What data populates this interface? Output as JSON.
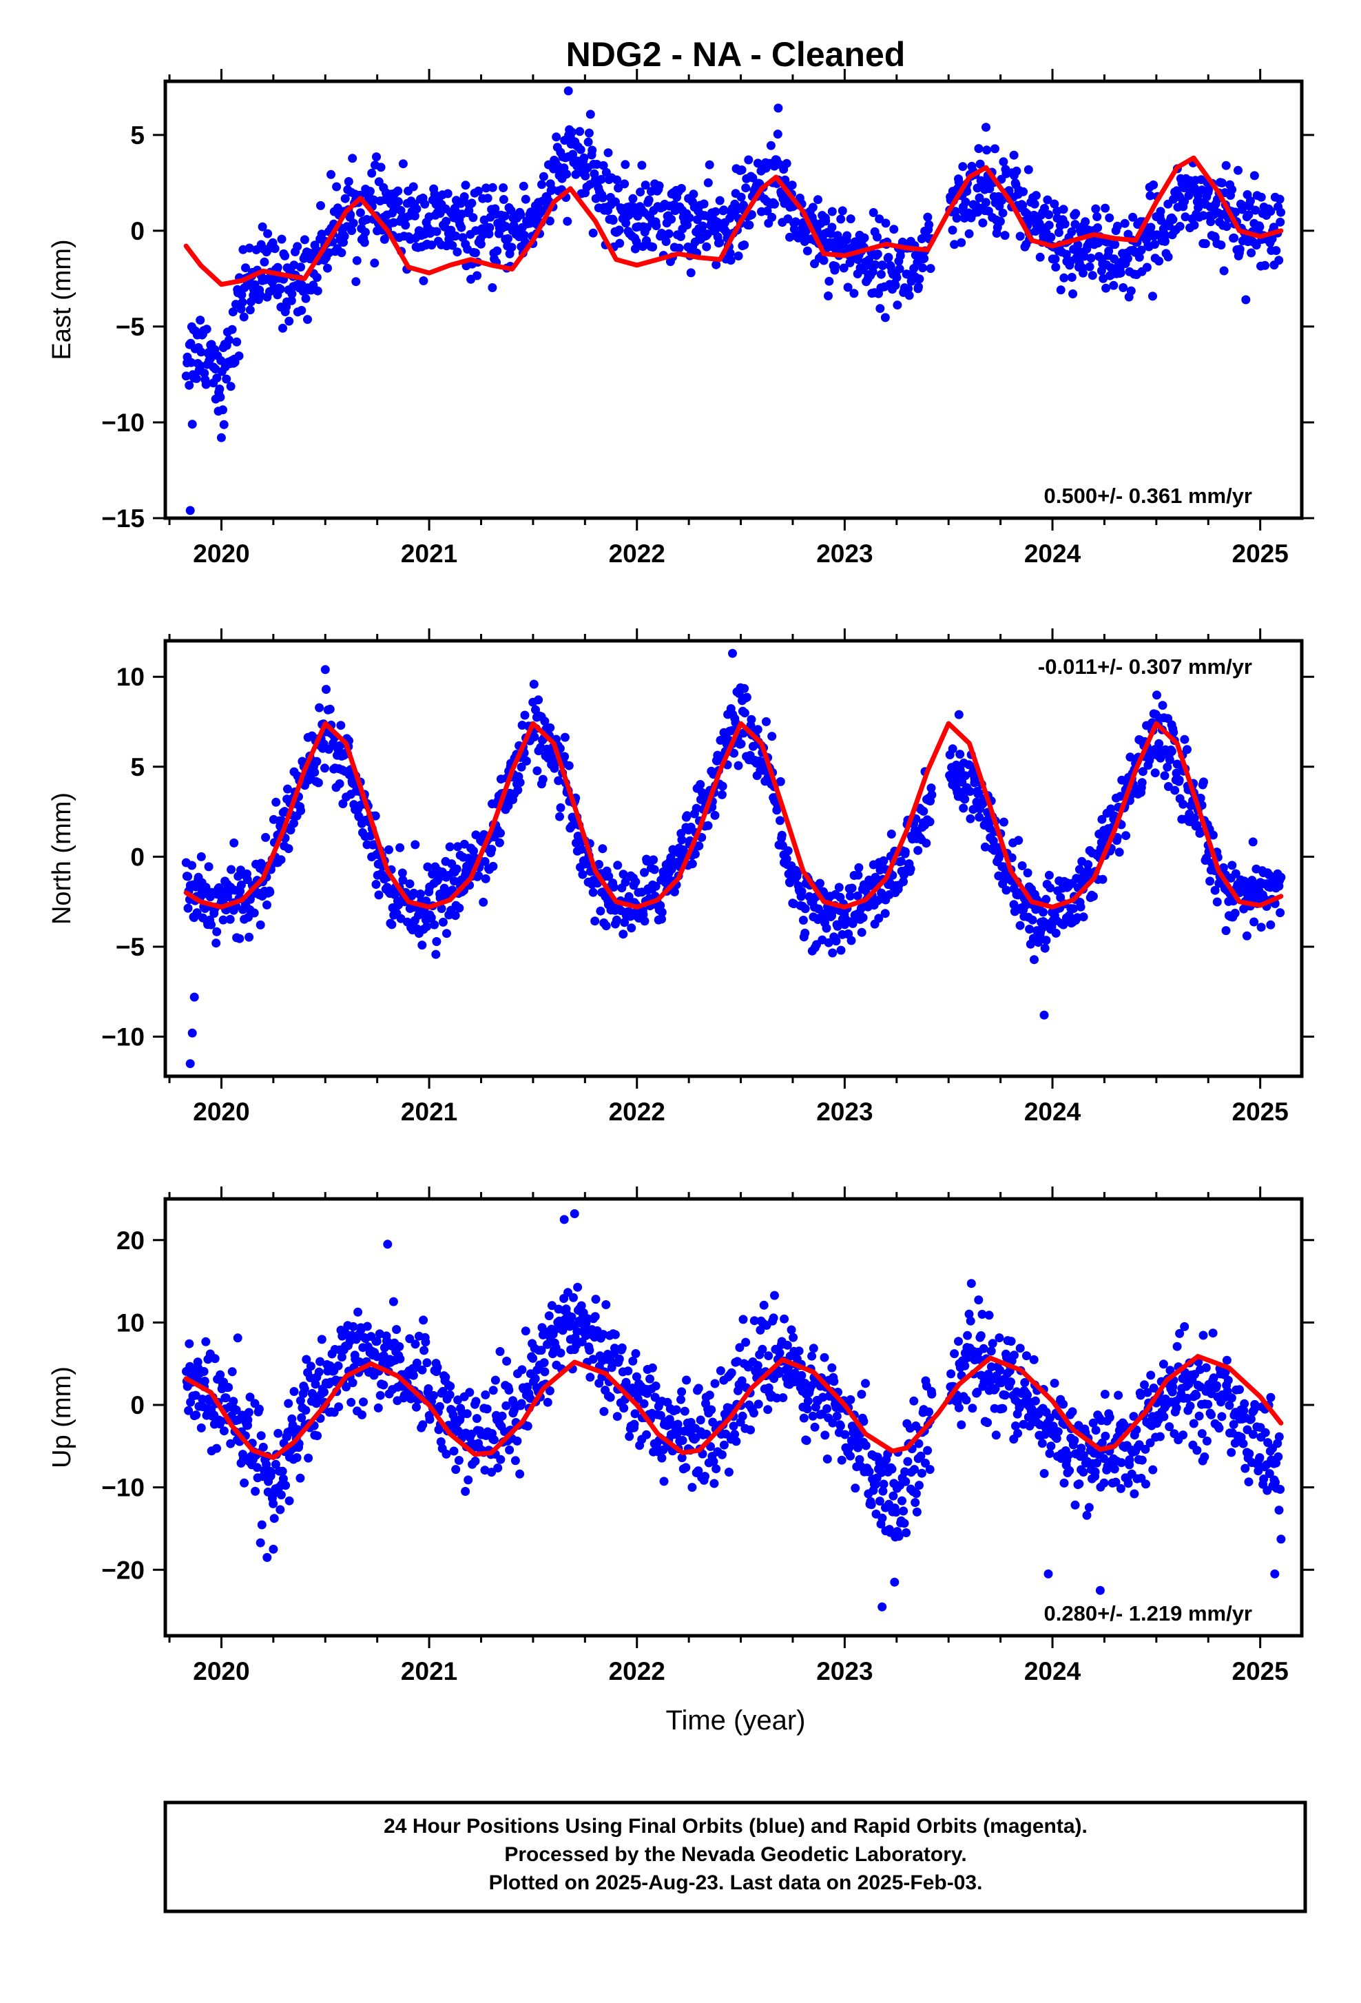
{
  "title": "NDG2  - NA - Cleaned",
  "xlabel": "Time (year)",
  "footer": {
    "line1": "24 Hour Positions Using Final Orbits (blue) and Rapid Orbits (magenta).",
    "line2": "Processed by the Nevada Geodetic Laboratory.",
    "line3": "Plotted on 2025-Aug-23. Last data on 2025-Feb-03."
  },
  "colors": {
    "points": "#0000ff",
    "fit": "#ff0000",
    "axes": "#000000"
  },
  "chart_data": [
    {
      "type": "scatter",
      "ylabel": "East (mm)",
      "rate_label": "0.500+/- 0.361 mm/yr",
      "rate_position": "bottom-right",
      "xlim": [
        2019.73,
        2025.2
      ],
      "ylim": [
        -15,
        7.8
      ],
      "x_ticks": [
        "2020",
        "2021",
        "2022",
        "2023",
        "2024",
        "2025"
      ],
      "y_ticks": [
        "5",
        "0",
        "−5",
        "−10",
        "−15"
      ],
      "y_tick_values": [
        5,
        0,
        -5,
        -10,
        -15
      ],
      "points_series": "Final Orbits (blue)",
      "scatter_trend": [
        [
          2019.83,
          -6.5
        ],
        [
          2019.9,
          -6.0
        ],
        [
          2019.95,
          -6.3
        ],
        [
          2020.0,
          -8.0
        ],
        [
          2020.06,
          -6.0
        ],
        [
          2020.1,
          -3.0
        ],
        [
          2020.2,
          -2.0
        ],
        [
          2020.3,
          -2.8
        ],
        [
          2020.4,
          -2.5
        ],
        [
          2020.5,
          -0.5
        ],
        [
          2020.6,
          1.0
        ],
        [
          2020.75,
          1.0
        ],
        [
          2020.9,
          0.5
        ],
        [
          2021.1,
          0.3
        ],
        [
          2021.3,
          -0.3
        ],
        [
          2021.5,
          0.5
        ],
        [
          2021.6,
          2.5
        ],
        [
          2021.7,
          4.0
        ],
        [
          2021.8,
          2.5
        ],
        [
          2021.9,
          1.0
        ],
        [
          2022.2,
          0.5
        ],
        [
          2022.4,
          0.0
        ],
        [
          2022.55,
          1.5
        ],
        [
          2022.65,
          2.8
        ],
        [
          2022.8,
          0.5
        ],
        [
          2023.0,
          -1.0
        ],
        [
          2023.2,
          -1.8
        ],
        [
          2023.35,
          -2.0
        ],
        [
          2023.5,
          0.5
        ],
        [
          2023.65,
          2.5
        ],
        [
          2023.8,
          2.0
        ],
        [
          2024.0,
          -0.5
        ],
        [
          2024.2,
          -1.0
        ],
        [
          2024.4,
          -1.5
        ],
        [
          2024.5,
          0.0
        ],
        [
          2024.65,
          2.0
        ],
        [
          2024.8,
          1.0
        ],
        [
          2025.0,
          0.0
        ],
        [
          2025.1,
          0.0
        ]
      ],
      "scatter_spread": 1.4,
      "fit_curve": [
        [
          2019.83,
          -0.8
        ],
        [
          2019.9,
          -1.8
        ],
        [
          2020.0,
          -2.8
        ],
        [
          2020.1,
          -2.6
        ],
        [
          2020.2,
          -2.1
        ],
        [
          2020.3,
          -2.3
        ],
        [
          2020.4,
          -2.5
        ],
        [
          2020.5,
          -0.8
        ],
        [
          2020.6,
          1.0
        ],
        [
          2020.67,
          1.7
        ],
        [
          2020.8,
          0.0
        ],
        [
          2020.9,
          -1.9
        ],
        [
          2021.0,
          -2.2
        ],
        [
          2021.1,
          -1.8
        ],
        [
          2021.2,
          -1.5
        ],
        [
          2021.3,
          -1.8
        ],
        [
          2021.4,
          -2.0
        ],
        [
          2021.5,
          -0.5
        ],
        [
          2021.6,
          1.5
        ],
        [
          2021.68,
          2.2
        ],
        [
          2021.8,
          0.5
        ],
        [
          2021.9,
          -1.5
        ],
        [
          2022.0,
          -1.8
        ],
        [
          2022.1,
          -1.5
        ],
        [
          2022.2,
          -1.2
        ],
        [
          2022.3,
          -1.4
        ],
        [
          2022.4,
          -1.5
        ],
        [
          2022.5,
          0.5
        ],
        [
          2022.6,
          2.2
        ],
        [
          2022.67,
          2.8
        ],
        [
          2022.8,
          1.0
        ],
        [
          2022.9,
          -1.2
        ],
        [
          2023.0,
          -1.3
        ],
        [
          2023.1,
          -1.0
        ],
        [
          2023.2,
          -0.7
        ],
        [
          2023.3,
          -0.9
        ],
        [
          2023.4,
          -1.0
        ],
        [
          2023.5,
          1.0
        ],
        [
          2023.6,
          2.8
        ],
        [
          2023.68,
          3.3
        ],
        [
          2023.8,
          1.5
        ],
        [
          2023.9,
          -0.5
        ],
        [
          2024.0,
          -0.8
        ],
        [
          2024.1,
          -0.5
        ],
        [
          2024.2,
          -0.2
        ],
        [
          2024.3,
          -0.4
        ],
        [
          2024.4,
          -0.5
        ],
        [
          2024.5,
          1.5
        ],
        [
          2024.6,
          3.3
        ],
        [
          2024.68,
          3.8
        ],
        [
          2024.8,
          2.0
        ],
        [
          2024.9,
          0.0
        ],
        [
          2025.0,
          -0.3
        ],
        [
          2025.1,
          0.0
        ]
      ],
      "outliers": [
        [
          2019.85,
          -14.6
        ],
        [
          2019.86,
          -10.1
        ],
        [
          2020.0,
          -10.8
        ],
        [
          2021.67,
          7.3
        ],
        [
          2022.68,
          6.4
        ],
        [
          2023.68,
          5.4
        ]
      ]
    },
    {
      "type": "scatter",
      "ylabel": "North (mm)",
      "rate_label": "-0.011+/- 0.307 mm/yr",
      "rate_position": "top-right",
      "xlim": [
        2019.73,
        2025.2
      ],
      "ylim": [
        -12.2,
        12.0
      ],
      "x_ticks": [
        "2020",
        "2021",
        "2022",
        "2023",
        "2024",
        "2025"
      ],
      "y_ticks": [
        "10",
        "5",
        "0",
        "−5",
        "−10"
      ],
      "y_tick_values": [
        10,
        5,
        0,
        -5,
        -10
      ],
      "points_series": "Final Orbits (blue)",
      "scatter_trend": [
        [
          2019.83,
          -2.0
        ],
        [
          2020.0,
          -2.8
        ],
        [
          2020.2,
          -1.5
        ],
        [
          2020.35,
          3.0
        ],
        [
          2020.5,
          7.5
        ],
        [
          2020.65,
          4.0
        ],
        [
          2020.8,
          -1.5
        ],
        [
          2020.95,
          -2.8
        ],
        [
          2021.1,
          -2.0
        ],
        [
          2021.3,
          1.0
        ],
        [
          2021.5,
          7.5
        ],
        [
          2021.65,
          4.0
        ],
        [
          2021.8,
          -1.5
        ],
        [
          2021.95,
          -2.8
        ],
        [
          2022.1,
          -2.0
        ],
        [
          2022.3,
          2.0
        ],
        [
          2022.5,
          8.0
        ],
        [
          2022.65,
          4.0
        ],
        [
          2022.75,
          -1.5
        ],
        [
          2022.9,
          -3.5
        ],
        [
          2023.1,
          -2.5
        ],
        [
          2023.25,
          -1.0
        ],
        [
          2023.5,
          5.0
        ],
        [
          2023.65,
          3.0
        ],
        [
          2023.8,
          -1.5
        ],
        [
          2023.95,
          -3.5
        ],
        [
          2024.1,
          -2.5
        ],
        [
          2024.3,
          1.5
        ],
        [
          2024.5,
          7.0
        ],
        [
          2024.65,
          4.0
        ],
        [
          2024.8,
          -1.0
        ],
        [
          2024.95,
          -2.5
        ],
        [
          2025.1,
          -1.5
        ]
      ],
      "scatter_spread": 1.3,
      "fit_curve": [
        [
          2019.83,
          -2.0
        ],
        [
          2019.9,
          -2.5
        ],
        [
          2020.0,
          -2.8
        ],
        [
          2020.1,
          -2.4
        ],
        [
          2020.2,
          -1.2
        ],
        [
          2020.3,
          1.5
        ],
        [
          2020.4,
          4.8
        ],
        [
          2020.5,
          7.4
        ],
        [
          2020.6,
          6.3
        ],
        [
          2020.7,
          2.8
        ],
        [
          2020.8,
          -0.8
        ],
        [
          2020.9,
          -2.5
        ],
        [
          2021.0,
          -2.8
        ],
        [
          2021.1,
          -2.4
        ],
        [
          2021.2,
          -1.2
        ],
        [
          2021.3,
          1.5
        ],
        [
          2021.4,
          4.8
        ],
        [
          2021.5,
          7.4
        ],
        [
          2021.6,
          6.3
        ],
        [
          2021.7,
          2.8
        ],
        [
          2021.8,
          -0.8
        ],
        [
          2021.9,
          -2.5
        ],
        [
          2022.0,
          -2.8
        ],
        [
          2022.1,
          -2.4
        ],
        [
          2022.2,
          -1.2
        ],
        [
          2022.3,
          1.5
        ],
        [
          2022.4,
          4.8
        ],
        [
          2022.5,
          7.4
        ],
        [
          2022.6,
          6.3
        ],
        [
          2022.7,
          2.8
        ],
        [
          2022.8,
          -0.8
        ],
        [
          2022.9,
          -2.5
        ],
        [
          2023.0,
          -2.8
        ],
        [
          2023.1,
          -2.4
        ],
        [
          2023.2,
          -1.2
        ],
        [
          2023.3,
          1.5
        ],
        [
          2023.4,
          4.8
        ],
        [
          2023.5,
          7.4
        ],
        [
          2023.6,
          6.3
        ],
        [
          2023.7,
          2.8
        ],
        [
          2023.8,
          -0.8
        ],
        [
          2023.9,
          -2.5
        ],
        [
          2024.0,
          -2.8
        ],
        [
          2024.1,
          -2.4
        ],
        [
          2024.2,
          -1.2
        ],
        [
          2024.3,
          1.5
        ],
        [
          2024.4,
          4.8
        ],
        [
          2024.5,
          7.4
        ],
        [
          2024.6,
          6.3
        ],
        [
          2024.7,
          2.8
        ],
        [
          2024.8,
          -0.8
        ],
        [
          2024.9,
          -2.5
        ],
        [
          2025.0,
          -2.7
        ],
        [
          2025.1,
          -2.2
        ]
      ],
      "outliers": [
        [
          2019.85,
          -11.5
        ],
        [
          2019.86,
          -9.8
        ],
        [
          2019.87,
          -7.8
        ],
        [
          2020.5,
          10.4
        ],
        [
          2022.46,
          11.3
        ],
        [
          2023.96,
          -8.8
        ],
        [
          2023.55,
          7.9
        ]
      ]
    },
    {
      "type": "scatter",
      "ylabel": "Up (mm)",
      "rate_label": "0.280+/- 1.219 mm/yr",
      "rate_position": "bottom-right",
      "xlim": [
        2019.73,
        2025.2
      ],
      "ylim": [
        -28,
        25
      ],
      "x_ticks": [
        "2020",
        "2021",
        "2022",
        "2023",
        "2024",
        "2025"
      ],
      "y_ticks": [
        "20",
        "10",
        "0",
        "−10",
        "−20"
      ],
      "y_tick_values": [
        20,
        10,
        0,
        -10,
        -20
      ],
      "points_series": "Final Orbits (blue)",
      "scatter_trend": [
        [
          2019.83,
          3.0
        ],
        [
          2020.0,
          0.0
        ],
        [
          2020.15,
          -5.0
        ],
        [
          2020.25,
          -9.0
        ],
        [
          2020.4,
          -2.0
        ],
        [
          2020.6,
          5.0
        ],
        [
          2020.8,
          6.0
        ],
        [
          2021.0,
          2.0
        ],
        [
          2021.2,
          -4.0
        ],
        [
          2021.35,
          -3.0
        ],
        [
          2021.5,
          3.0
        ],
        [
          2021.7,
          12.0
        ],
        [
          2021.9,
          4.0
        ],
        [
          2022.1,
          -2.0
        ],
        [
          2022.3,
          -5.0
        ],
        [
          2022.5,
          2.0
        ],
        [
          2022.7,
          6.0
        ],
        [
          2022.9,
          0.0
        ],
        [
          2023.1,
          -6.0
        ],
        [
          2023.25,
          -12.0
        ],
        [
          2023.4,
          -2.0
        ],
        [
          2023.6,
          6.0
        ],
        [
          2023.8,
          2.0
        ],
        [
          2024.0,
          -3.0
        ],
        [
          2024.2,
          -7.0
        ],
        [
          2024.4,
          -5.0
        ],
        [
          2024.6,
          2.0
        ],
        [
          2024.8,
          1.0
        ],
        [
          2025.0,
          -4.0
        ],
        [
          2025.1,
          -8.0
        ]
      ],
      "scatter_spread": 4.0,
      "fit_curve": [
        [
          2019.83,
          3.2
        ],
        [
          2019.95,
          1.5
        ],
        [
          2020.05,
          -2.5
        ],
        [
          2020.15,
          -5.5
        ],
        [
          2020.25,
          -6.4
        ],
        [
          2020.35,
          -4.5
        ],
        [
          2020.5,
          0.0
        ],
        [
          2020.6,
          3.5
        ],
        [
          2020.72,
          5.0
        ],
        [
          2020.85,
          3.5
        ],
        [
          2021.0,
          0.0
        ],
        [
          2021.1,
          -3.5
        ],
        [
          2021.22,
          -6.0
        ],
        [
          2021.3,
          -5.8
        ],
        [
          2021.45,
          -2.0
        ],
        [
          2021.55,
          2.0
        ],
        [
          2021.7,
          5.2
        ],
        [
          2021.85,
          3.8
        ],
        [
          2022.0,
          0.0
        ],
        [
          2022.1,
          -3.5
        ],
        [
          2022.22,
          -5.8
        ],
        [
          2022.3,
          -5.5
        ],
        [
          2022.45,
          -1.5
        ],
        [
          2022.55,
          2.0
        ],
        [
          2022.7,
          5.5
        ],
        [
          2022.85,
          4.0
        ],
        [
          2023.0,
          0.0
        ],
        [
          2023.1,
          -3.5
        ],
        [
          2023.23,
          -5.6
        ],
        [
          2023.3,
          -5.2
        ],
        [
          2023.45,
          -1.0
        ],
        [
          2023.55,
          2.5
        ],
        [
          2023.7,
          5.7
        ],
        [
          2023.85,
          4.2
        ],
        [
          2024.0,
          0.5
        ],
        [
          2024.1,
          -3.0
        ],
        [
          2024.23,
          -5.4
        ],
        [
          2024.3,
          -5.0
        ],
        [
          2024.45,
          -0.8
        ],
        [
          2024.55,
          3.0
        ],
        [
          2024.7,
          5.9
        ],
        [
          2024.85,
          4.5
        ],
        [
          2025.0,
          1.0
        ],
        [
          2025.1,
          -2.2
        ]
      ],
      "outliers": [
        [
          2020.22,
          -18.5
        ],
        [
          2020.25,
          -17.5
        ],
        [
          2021.7,
          23.2
        ],
        [
          2021.65,
          22.5
        ],
        [
          2023.18,
          -24.5
        ],
        [
          2023.24,
          -21.5
        ],
        [
          2023.98,
          -20.5
        ],
        [
          2024.23,
          -22.5
        ],
        [
          2025.07,
          -20.5
        ],
        [
          2020.8,
          19.5
        ]
      ]
    }
  ]
}
